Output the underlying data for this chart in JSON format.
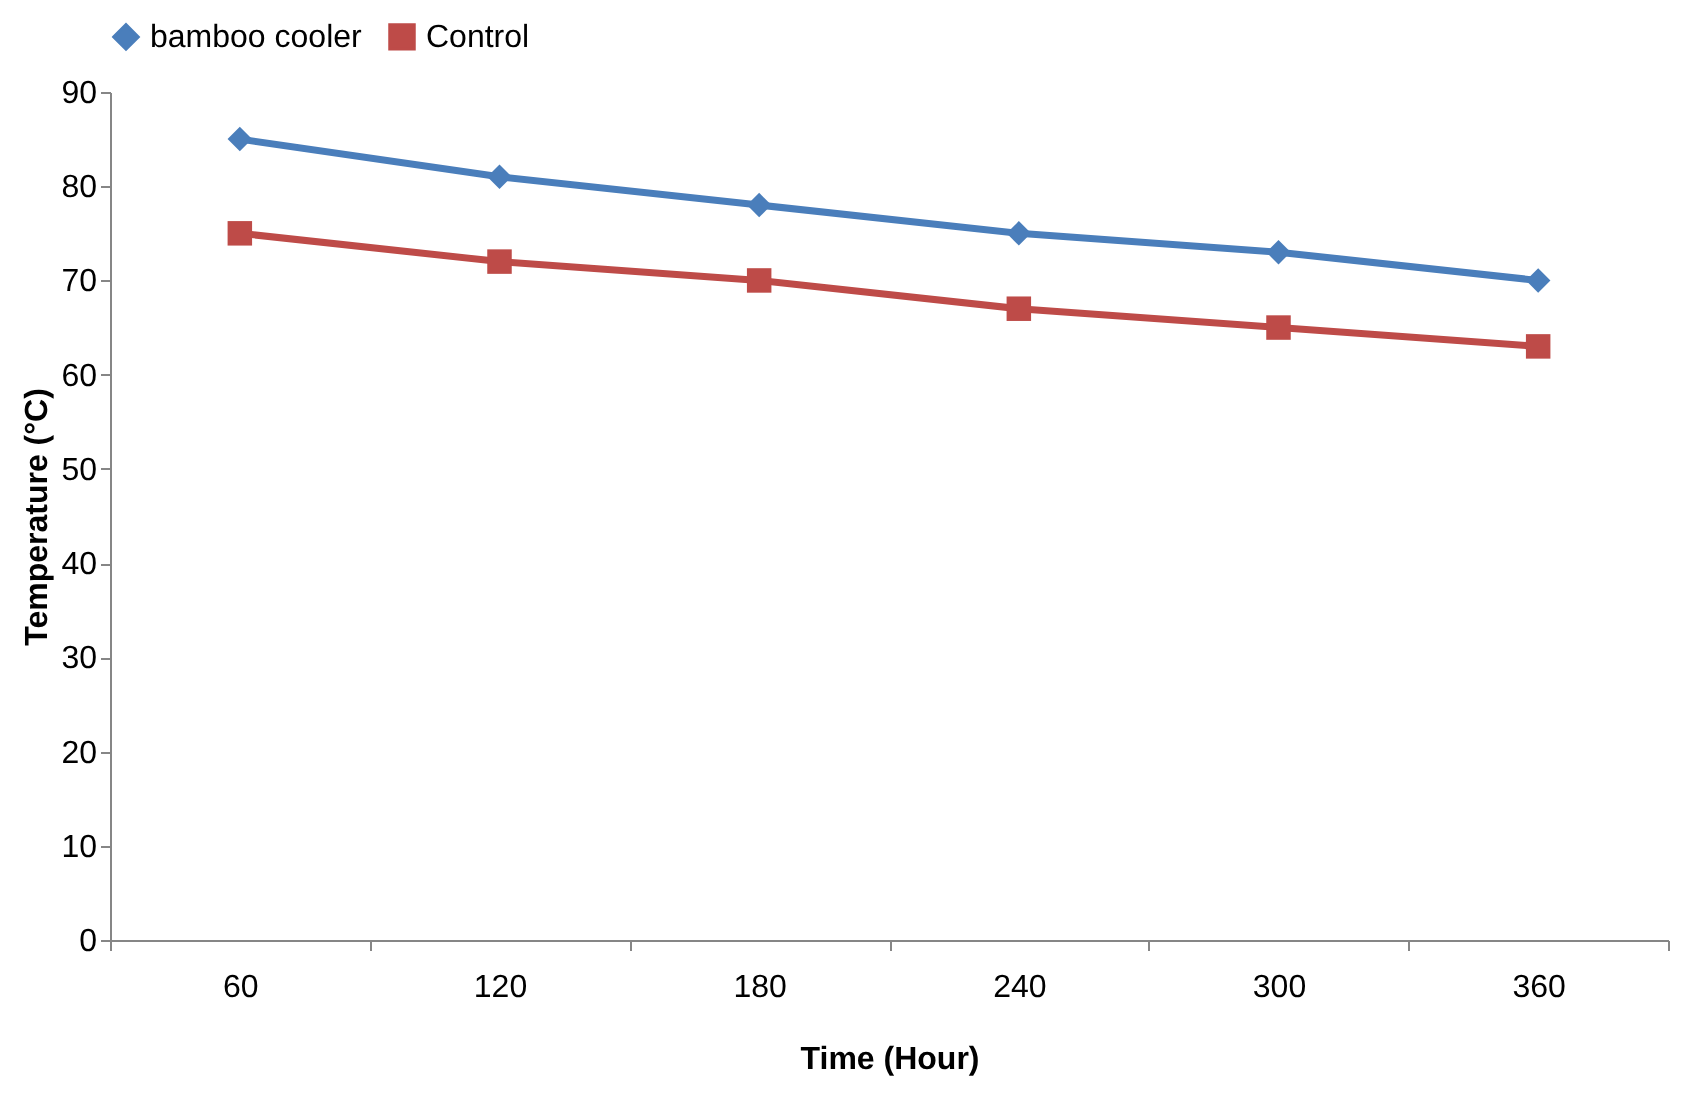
{
  "chart_data": {
    "type": "line",
    "xlabel": "Time (Hour)",
    "ylabel": "Temperature (°C)",
    "categories": [
      "60",
      "120",
      "180",
      "240",
      "300",
      "360"
    ],
    "series": [
      {
        "name": "bamboo cooler",
        "color": "#4a7ebb",
        "marker": "diamond",
        "values": [
          85,
          81,
          78,
          75,
          73,
          70
        ]
      },
      {
        "name": "Control",
        "color": "#be4b48",
        "marker": "square",
        "values": [
          75,
          72,
          70,
          67,
          65,
          63
        ]
      }
    ],
    "ylim": [
      0,
      90
    ],
    "yticks": [
      0,
      10,
      20,
      30,
      40,
      50,
      60,
      70,
      80,
      90
    ],
    "grid": false,
    "legend": "top"
  }
}
